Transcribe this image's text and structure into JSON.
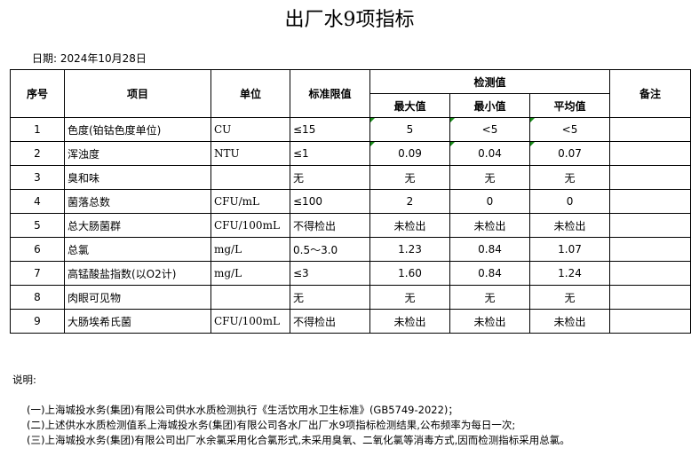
{
  "title": "出厂水9项指标",
  "date": "日期: 2024年10月28日",
  "headers": {
    "seq": "序号",
    "item": "项目",
    "unit": "单位",
    "limit": "标准限值",
    "measured": "检测值",
    "max": "最大值",
    "min": "最小值",
    "avg": "平均值",
    "remark": "备注"
  },
  "rows": [
    {
      "seq": "1",
      "item": "色度(铂钴色度单位)",
      "unit": "CU",
      "limit": "≤15",
      "max": "5",
      "min": "<5",
      "avg": "<5"
    },
    {
      "seq": "2",
      "item": "浑浊度",
      "unit": "NTU",
      "limit": "≤1",
      "max": "0.09",
      "min": "0.04",
      "avg": "0.07"
    },
    {
      "seq": "3",
      "item": "臭和味",
      "unit": "",
      "limit": "无",
      "max": "无",
      "min": "无",
      "avg": "无"
    },
    {
      "seq": "4",
      "item": "菌落总数",
      "unit": "CFU/mL",
      "limit": "≤100",
      "max": "2",
      "min": "0",
      "avg": "0"
    },
    {
      "seq": "5",
      "item": "总大肠菌群",
      "unit": "CFU/100mL",
      "limit": "不得检出",
      "max": "未检出",
      "min": "未检出",
      "avg": "未检出"
    },
    {
      "seq": "6",
      "item": "总氯",
      "unit": "mg/L",
      "limit": "0.5～3.0",
      "max": "1.23",
      "min": "0.84",
      "avg": "1.07"
    },
    {
      "seq": "7",
      "item": "高锰酸盐指数(以O2计)",
      "unit": "mg/L",
      "limit": "≤3",
      "max": "1.60",
      "min": "0.84",
      "avg": "1.24"
    },
    {
      "seq": "8",
      "item": "肉眼可见物",
      "unit": "",
      "limit": "无",
      "max": "无",
      "min": "无",
      "avg": "无"
    },
    {
      "seq": "9",
      "item": "大肠埃希氏菌",
      "unit": "CFU/100mL",
      "limit": "不得检出",
      "max": "未检出",
      "min": "未检出",
      "avg": "未检出"
    }
  ],
  "notes": {
    "label": "说明:",
    "lines": [
      "(一)上海城投水务(集团)有限公司供水水质检测执行《生活饮用水卫生标准》(GB5749-2022)；",
      "(二)上述供水水质检测值系上海城投水务(集团)有限公司各水厂出厂水9项指标检测结果,公布频率为每日一次;",
      "(三)上海城投水务(集团)有限公司出厂水余氯采用化合氯形式,未采用臭氧、二氧化氯等消毒方式,因而检测指标采用总氯。"
    ]
  }
}
